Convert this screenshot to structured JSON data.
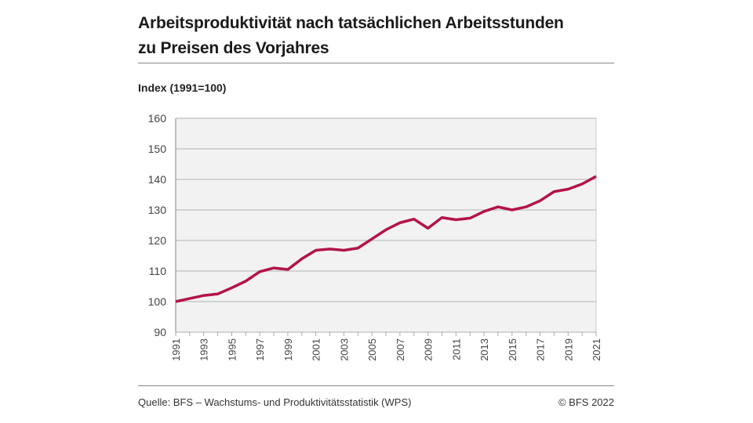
{
  "title_line1": "Arbeitsproduktivität nach tatsächlichen Arbeitsstunden",
  "title_line2": "zu Preisen des Vorjahres",
  "source": "Quelle: BFS – Wachstums- und Produktivitätsstatistik (WPS)",
  "copyright": "© BFS 2022",
  "chart_data": {
    "type": "line",
    "ylabel": "Index (1991=100)",
    "xlabel": "",
    "ylim": [
      90,
      160
    ],
    "yticks": [
      90,
      100,
      110,
      120,
      130,
      140,
      150,
      160
    ],
    "xticks": [
      1991,
      1993,
      1995,
      1997,
      1999,
      2001,
      2003,
      2005,
      2007,
      2009,
      2011,
      2013,
      2015,
      2017,
      2019,
      2021
    ],
    "grid": true,
    "line_color": "#b3134a",
    "plot_background": "#f2f2f2",
    "x": [
      1991,
      1992,
      1993,
      1994,
      1995,
      1996,
      1997,
      1998,
      1999,
      2000,
      2001,
      2002,
      2003,
      2004,
      2005,
      2006,
      2007,
      2008,
      2009,
      2010,
      2011,
      2012,
      2013,
      2014,
      2015,
      2016,
      2017,
      2018,
      2019,
      2020,
      2021
    ],
    "values": [
      100,
      101,
      102,
      102.5,
      104.5,
      106.7,
      109.8,
      111,
      110.5,
      114,
      116.8,
      117.2,
      116.8,
      117.5,
      120.5,
      123.5,
      125.8,
      127,
      124,
      127.5,
      126.8,
      127.3,
      129.5,
      131,
      130,
      131,
      133,
      136,
      136.8,
      138.5,
      141
    ]
  }
}
